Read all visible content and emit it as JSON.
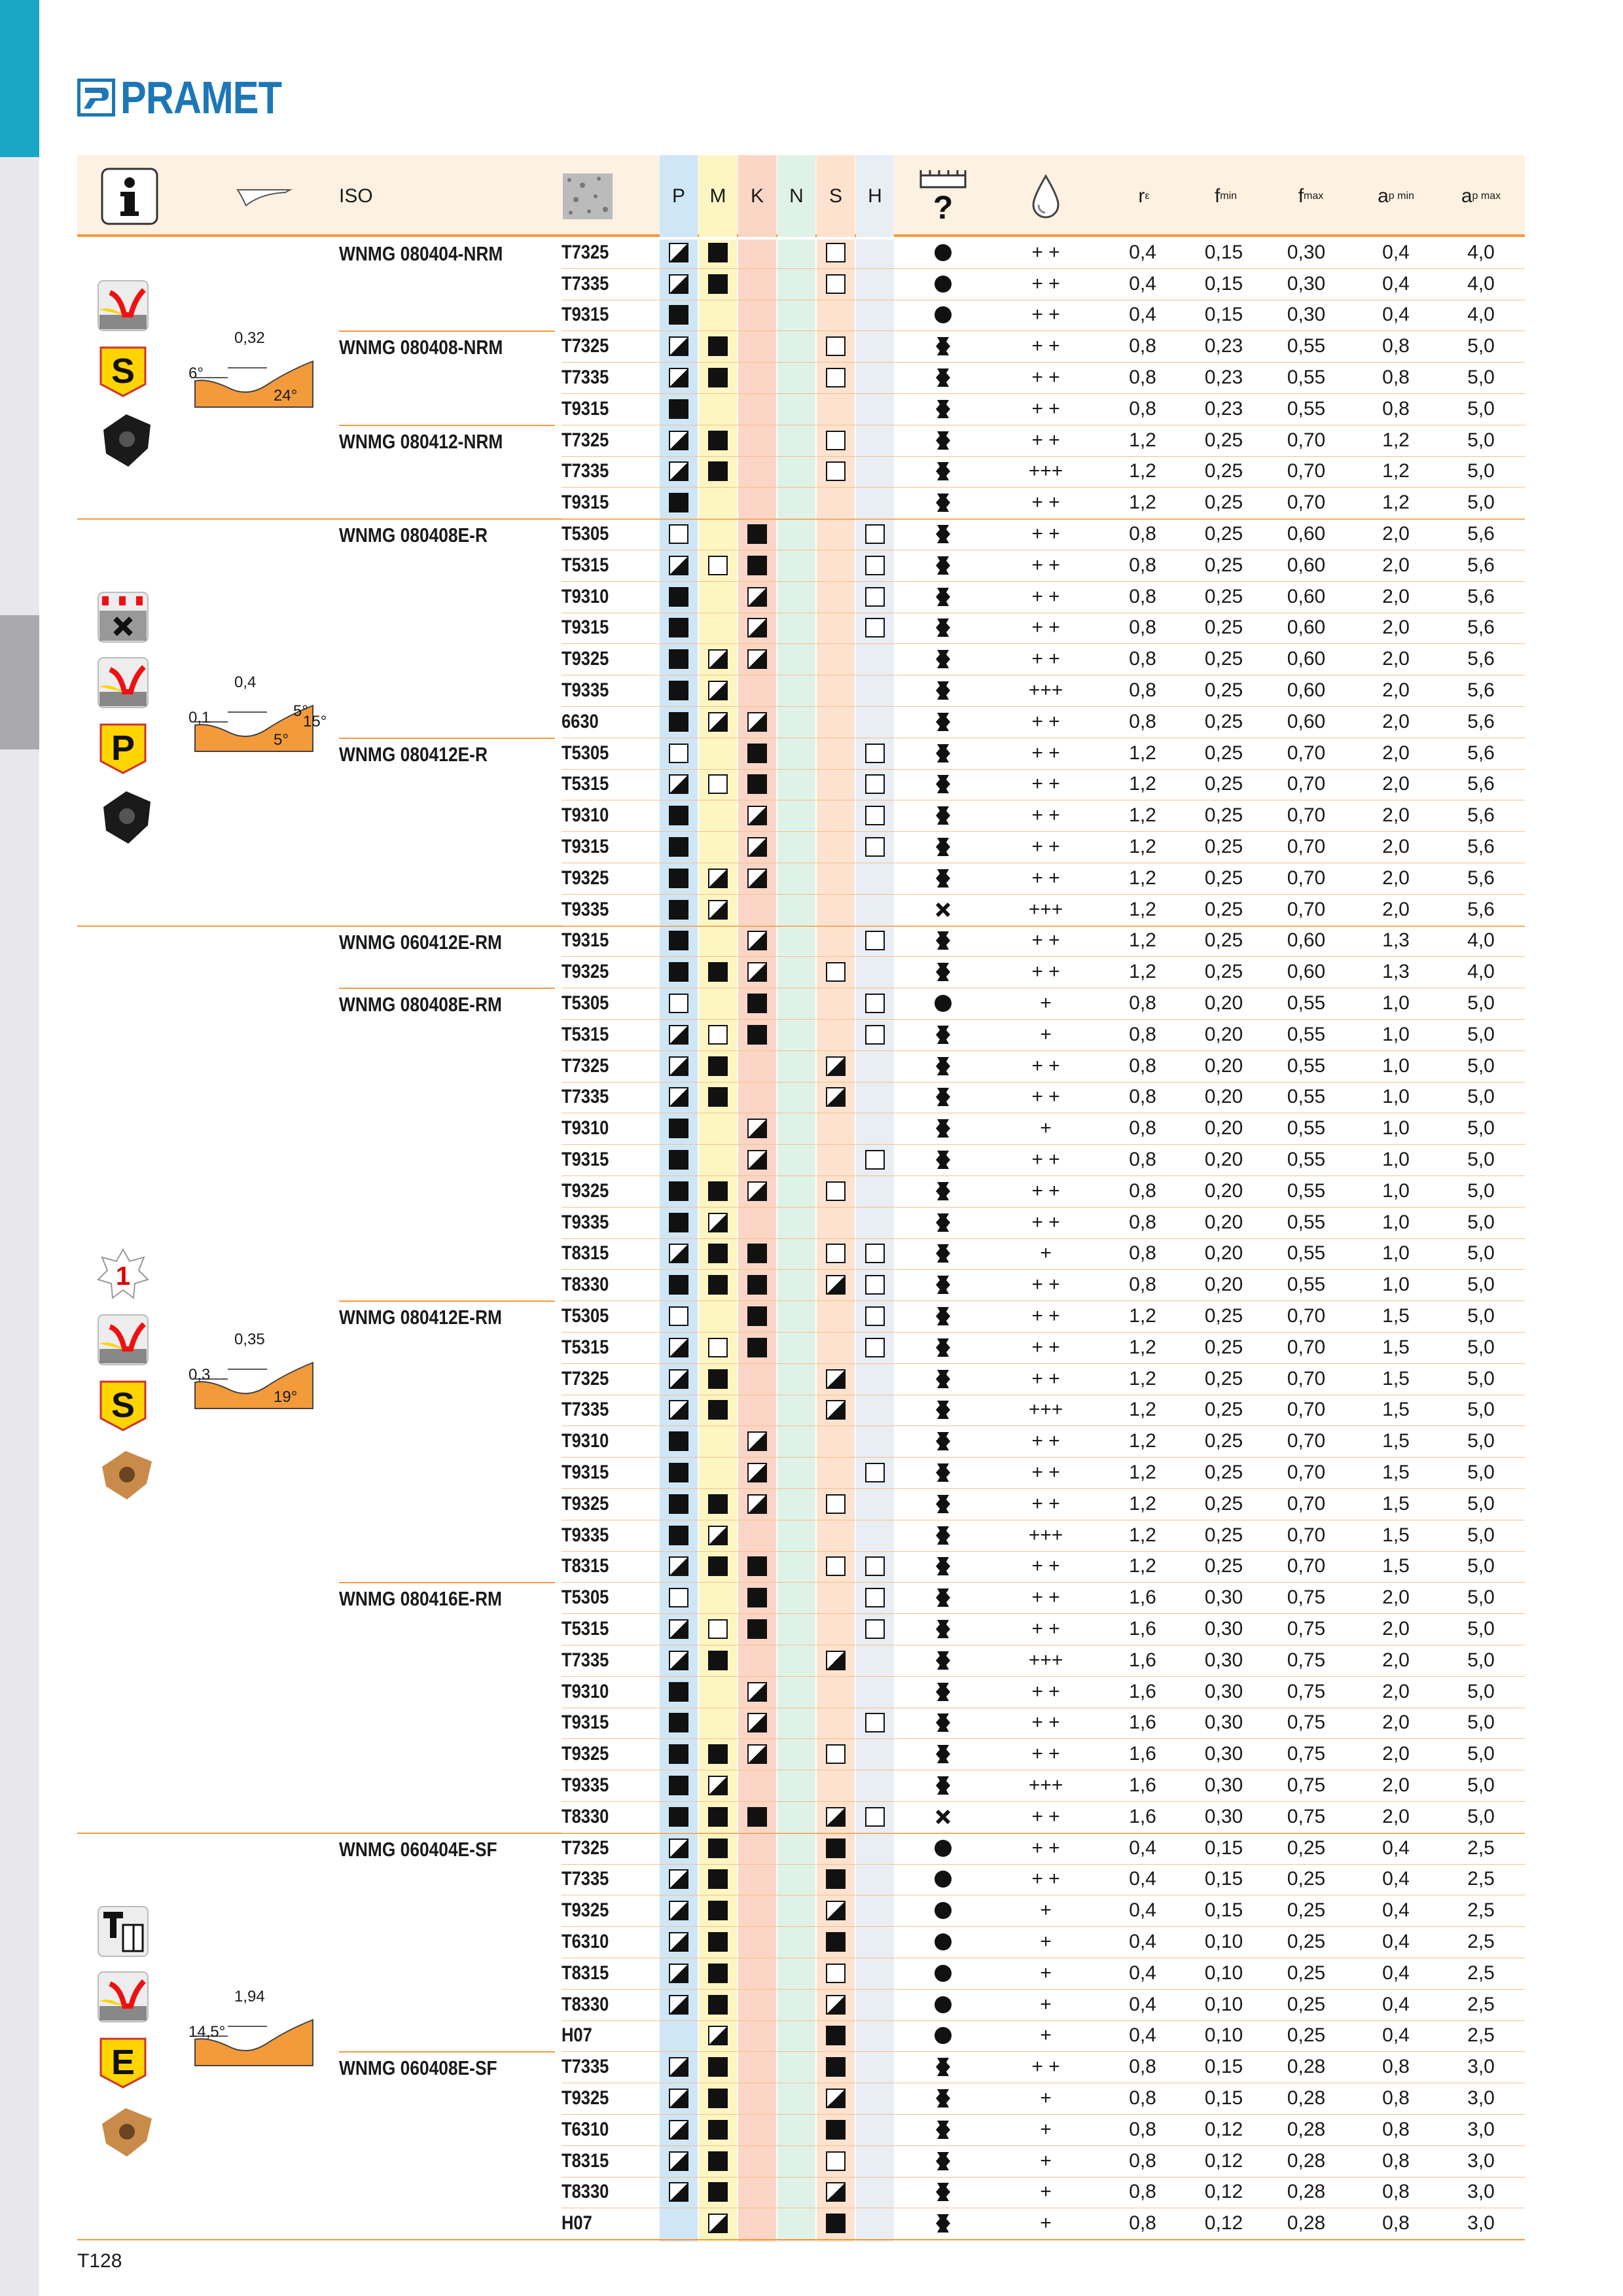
{
  "brand": "PRAMET",
  "page_label": "T128",
  "header": {
    "iso": "ISO",
    "P": "P",
    "M": "M",
    "K": "K",
    "N": "N",
    "S": "S",
    "H": "H",
    "re": "r",
    "re_sub": "ε",
    "fmin": "f",
    "fmin_sub": "min",
    "fmax": "f",
    "fmax_sub": "max",
    "apmin": "a",
    "apmin_sub": "p min",
    "apmax": "a",
    "apmax_sub": "p max"
  },
  "colors": {
    "P": "#cfe6f7",
    "M": "#fdf6c3",
    "K": "#fbd6c6",
    "N": "#dff2e8",
    "S": "#fde3cf",
    "H": "#e9edf4",
    "accent": "#f39a3b"
  },
  "groups": [
    {
      "iso": [
        [
          "WNMG 080404-NRM",
          0
        ],
        [
          "WNMG 080408-NRM",
          3
        ],
        [
          "WNMG 080412-NRM",
          6
        ]
      ],
      "start": 0,
      "count": 9,
      "icons": [
        "yellow-chip-icon",
        "s-icon",
        "black-insert-icon"
      ],
      "angles": [
        "0,32",
        "6°",
        "24°"
      ]
    },
    {
      "iso": [
        [
          "WNMG 080408E-R",
          0
        ],
        [
          "WNMG 080412E-R",
          7
        ]
      ],
      "start": 9,
      "count": 13,
      "icons": [
        "interrupted-cut-icon",
        "yellow-chip-icon",
        "p-icon",
        "black-insert-icon"
      ],
      "angles": [
        "0,4",
        "0,1",
        "5°",
        "5°",
        "15°"
      ]
    },
    {
      "iso": [
        [
          "WNMG 060412E-RM",
          0
        ],
        [
          "WNMG 080408E-RM",
          2
        ],
        [
          "WNMG 080412E-RM",
          12
        ],
        [
          "WNMG 080416E-RM",
          21
        ]
      ],
      "start": 22,
      "count": 29,
      "icons": [
        "star-1-icon",
        "yellow-chip-icon",
        "s-icon",
        "gold-insert-icon"
      ],
      "angles": [
        "0,35",
        "0,3",
        "19°"
      ]
    },
    {
      "iso": [
        [
          "WNMG 060404E-SF",
          0
        ],
        [
          "WNMG 060408E-SF",
          7
        ]
      ],
      "start": 51,
      "count": 13,
      "icons": [
        "tool-icon",
        "yellow-chip-icon",
        "e-icon",
        "gold-insert-icon"
      ],
      "angles": [
        "1,94",
        "14,5°"
      ]
    }
  ],
  "rows": [
    [
      "T7325",
      "h",
      "f",
      "",
      "",
      "e",
      "",
      "dot",
      "++",
      "0,4",
      "0,15",
      "0,30",
      "0,4",
      "4,0"
    ],
    [
      "T7335",
      "h",
      "f",
      "",
      "",
      "e",
      "",
      "dot",
      "++",
      "0,4",
      "0,15",
      "0,30",
      "0,4",
      "4,0"
    ],
    [
      "T9315",
      "f",
      "",
      "",
      "",
      "",
      "",
      "dot",
      "++",
      "0,4",
      "0,15",
      "0,30",
      "0,4",
      "4,0"
    ],
    [
      "T7325",
      "h",
      "f",
      "",
      "",
      "e",
      "",
      "wave",
      "++",
      "0,8",
      "0,23",
      "0,55",
      "0,8",
      "5,0"
    ],
    [
      "T7335",
      "h",
      "f",
      "",
      "",
      "e",
      "",
      "wave",
      "++",
      "0,8",
      "0,23",
      "0,55",
      "0,8",
      "5,0"
    ],
    [
      "T9315",
      "f",
      "",
      "",
      "",
      "",
      "",
      "wave",
      "++",
      "0,8",
      "0,23",
      "0,55",
      "0,8",
      "5,0"
    ],
    [
      "T7325",
      "h",
      "f",
      "",
      "",
      "e",
      "",
      "wave",
      "++",
      "1,2",
      "0,25",
      "0,70",
      "1,2",
      "5,0"
    ],
    [
      "T7335",
      "h",
      "f",
      "",
      "",
      "e",
      "",
      "wave",
      "+++",
      "1,2",
      "0,25",
      "0,70",
      "1,2",
      "5,0"
    ],
    [
      "T9315",
      "f",
      "",
      "",
      "",
      "",
      "",
      "wave",
      "++",
      "1,2",
      "0,25",
      "0,70",
      "1,2",
      "5,0"
    ],
    [
      "T5305",
      "e",
      "",
      "f",
      "",
      "",
      "e",
      "wave",
      "++",
      "0,8",
      "0,25",
      "0,60",
      "2,0",
      "5,6"
    ],
    [
      "T5315",
      "h",
      "e",
      "f",
      "",
      "",
      "e",
      "wave",
      "++",
      "0,8",
      "0,25",
      "0,60",
      "2,0",
      "5,6"
    ],
    [
      "T9310",
      "f",
      "",
      "h",
      "",
      "",
      "e",
      "wave",
      "++",
      "0,8",
      "0,25",
      "0,60",
      "2,0",
      "5,6"
    ],
    [
      "T9315",
      "f",
      "",
      "h",
      "",
      "",
      "e",
      "wave",
      "++",
      "0,8",
      "0,25",
      "0,60",
      "2,0",
      "5,6"
    ],
    [
      "T9325",
      "f",
      "h",
      "h",
      "",
      "",
      "",
      "wave",
      "++",
      "0,8",
      "0,25",
      "0,60",
      "2,0",
      "5,6"
    ],
    [
      "T9335",
      "f",
      "h",
      "",
      "",
      "",
      "",
      "wave",
      "+++",
      "0,8",
      "0,25",
      "0,60",
      "2,0",
      "5,6"
    ],
    [
      "6630",
      "f",
      "h",
      "h",
      "",
      "",
      "",
      "wave",
      "++",
      "0,8",
      "0,25",
      "0,60",
      "2,0",
      "5,6"
    ],
    [
      "T5305",
      "e",
      "",
      "f",
      "",
      "",
      "e",
      "wave",
      "++",
      "1,2",
      "0,25",
      "0,70",
      "2,0",
      "5,6"
    ],
    [
      "T5315",
      "h",
      "e",
      "f",
      "",
      "",
      "e",
      "wave",
      "++",
      "1,2",
      "0,25",
      "0,70",
      "2,0",
      "5,6"
    ],
    [
      "T9310",
      "f",
      "",
      "h",
      "",
      "",
      "e",
      "wave",
      "++",
      "1,2",
      "0,25",
      "0,70",
      "2,0",
      "5,6"
    ],
    [
      "T9315",
      "f",
      "",
      "h",
      "",
      "",
      "e",
      "wave",
      "++",
      "1,2",
      "0,25",
      "0,70",
      "2,0",
      "5,6"
    ],
    [
      "T9325",
      "f",
      "h",
      "h",
      "",
      "",
      "",
      "wave",
      "++",
      "1,2",
      "0,25",
      "0,70",
      "2,0",
      "5,6"
    ],
    [
      "T9335",
      "f",
      "h",
      "",
      "",
      "",
      "",
      "cross",
      "+++",
      "1,2",
      "0,25",
      "0,70",
      "2,0",
      "5,6"
    ],
    [
      "T9315",
      "f",
      "",
      "h",
      "",
      "",
      "e",
      "wave",
      "++",
      "1,2",
      "0,25",
      "0,60",
      "1,3",
      "4,0"
    ],
    [
      "T9325",
      "f",
      "f",
      "h",
      "",
      "e",
      "",
      "wave",
      "++",
      "1,2",
      "0,25",
      "0,60",
      "1,3",
      "4,0"
    ],
    [
      "T5305",
      "e",
      "",
      "f",
      "",
      "",
      "e",
      "dot",
      "+",
      "0,8",
      "0,20",
      "0,55",
      "1,0",
      "5,0"
    ],
    [
      "T5315",
      "h",
      "e",
      "f",
      "",
      "",
      "e",
      "wave",
      "+",
      "0,8",
      "0,20",
      "0,55",
      "1,0",
      "5,0"
    ],
    [
      "T7325",
      "h",
      "f",
      "",
      "",
      "h",
      "",
      "wave",
      "++",
      "0,8",
      "0,20",
      "0,55",
      "1,0",
      "5,0"
    ],
    [
      "T7335",
      "h",
      "f",
      "",
      "",
      "h",
      "",
      "wave",
      "++",
      "0,8",
      "0,20",
      "0,55",
      "1,0",
      "5,0"
    ],
    [
      "T9310",
      "f",
      "",
      "h",
      "",
      "",
      "",
      "wave",
      "+",
      "0,8",
      "0,20",
      "0,55",
      "1,0",
      "5,0"
    ],
    [
      "T9315",
      "f",
      "",
      "h",
      "",
      "",
      "e",
      "wave",
      "++",
      "0,8",
      "0,20",
      "0,55",
      "1,0",
      "5,0"
    ],
    [
      "T9325",
      "f",
      "f",
      "h",
      "",
      "e",
      "",
      "wave",
      "++",
      "0,8",
      "0,20",
      "0,55",
      "1,0",
      "5,0"
    ],
    [
      "T9335",
      "f",
      "h",
      "",
      "",
      "",
      "",
      "wave",
      "++",
      "0,8",
      "0,20",
      "0,55",
      "1,0",
      "5,0"
    ],
    [
      "T8315",
      "h",
      "f",
      "f",
      "",
      "e",
      "e",
      "wave",
      "+",
      "0,8",
      "0,20",
      "0,55",
      "1,0",
      "5,0"
    ],
    [
      "T8330",
      "f",
      "f",
      "f",
      "",
      "h",
      "e",
      "wave",
      "++",
      "0,8",
      "0,20",
      "0,55",
      "1,0",
      "5,0"
    ],
    [
      "T5305",
      "e",
      "",
      "f",
      "",
      "",
      "e",
      "wave",
      "++",
      "1,2",
      "0,25",
      "0,70",
      "1,5",
      "5,0"
    ],
    [
      "T5315",
      "h",
      "e",
      "f",
      "",
      "",
      "e",
      "wave",
      "++",
      "1,2",
      "0,25",
      "0,70",
      "1,5",
      "5,0"
    ],
    [
      "T7325",
      "h",
      "f",
      "",
      "",
      "h",
      "",
      "wave",
      "++",
      "1,2",
      "0,25",
      "0,70",
      "1,5",
      "5,0"
    ],
    [
      "T7335",
      "h",
      "f",
      "",
      "",
      "h",
      "",
      "wave",
      "+++",
      "1,2",
      "0,25",
      "0,70",
      "1,5",
      "5,0"
    ],
    [
      "T9310",
      "f",
      "",
      "h",
      "",
      "",
      "",
      "wave",
      "++",
      "1,2",
      "0,25",
      "0,70",
      "1,5",
      "5,0"
    ],
    [
      "T9315",
      "f",
      "",
      "h",
      "",
      "",
      "e",
      "wave",
      "++",
      "1,2",
      "0,25",
      "0,70",
      "1,5",
      "5,0"
    ],
    [
      "T9325",
      "f",
      "f",
      "h",
      "",
      "e",
      "",
      "wave",
      "++",
      "1,2",
      "0,25",
      "0,70",
      "1,5",
      "5,0"
    ],
    [
      "T9335",
      "f",
      "h",
      "",
      "",
      "",
      "",
      "wave",
      "+++",
      "1,2",
      "0,25",
      "0,70",
      "1,5",
      "5,0"
    ],
    [
      "T8315",
      "h",
      "f",
      "f",
      "",
      "e",
      "e",
      "wave",
      "++",
      "1,2",
      "0,25",
      "0,70",
      "1,5",
      "5,0"
    ],
    [
      "T5305",
      "e",
      "",
      "f",
      "",
      "",
      "e",
      "wave",
      "++",
      "1,6",
      "0,30",
      "0,75",
      "2,0",
      "5,0"
    ],
    [
      "T5315",
      "h",
      "e",
      "f",
      "",
      "",
      "e",
      "wave",
      "++",
      "1,6",
      "0,30",
      "0,75",
      "2,0",
      "5,0"
    ],
    [
      "T7335",
      "h",
      "f",
      "",
      "",
      "h",
      "",
      "wave",
      "+++",
      "1,6",
      "0,30",
      "0,75",
      "2,0",
      "5,0"
    ],
    [
      "T9310",
      "f",
      "",
      "h",
      "",
      "",
      "",
      "wave",
      "++",
      "1,6",
      "0,30",
      "0,75",
      "2,0",
      "5,0"
    ],
    [
      "T9315",
      "f",
      "",
      "h",
      "",
      "",
      "e",
      "wave",
      "++",
      "1,6",
      "0,30",
      "0,75",
      "2,0",
      "5,0"
    ],
    [
      "T9325",
      "f",
      "f",
      "h",
      "",
      "e",
      "",
      "wave",
      "++",
      "1,6",
      "0,30",
      "0,75",
      "2,0",
      "5,0"
    ],
    [
      "T9335",
      "f",
      "h",
      "",
      "",
      "",
      "",
      "wave",
      "+++",
      "1,6",
      "0,30",
      "0,75",
      "2,0",
      "5,0"
    ],
    [
      "T8330",
      "f",
      "f",
      "f",
      "",
      "h",
      "e",
      "cross",
      "++",
      "1,6",
      "0,30",
      "0,75",
      "2,0",
      "5,0"
    ],
    [
      "T7325",
      "h",
      "f",
      "",
      "",
      "f",
      "",
      "dot",
      "++",
      "0,4",
      "0,15",
      "0,25",
      "0,4",
      "2,5"
    ],
    [
      "T7335",
      "h",
      "f",
      "",
      "",
      "f",
      "",
      "dot",
      "++",
      "0,4",
      "0,15",
      "0,25",
      "0,4",
      "2,5"
    ],
    [
      "T9325",
      "h",
      "f",
      "",
      "",
      "h",
      "",
      "dot",
      "+",
      "0,4",
      "0,15",
      "0,25",
      "0,4",
      "2,5"
    ],
    [
      "T6310",
      "h",
      "f",
      "",
      "",
      "f",
      "",
      "dot",
      "+",
      "0,4",
      "0,10",
      "0,25",
      "0,4",
      "2,5"
    ],
    [
      "T8315",
      "h",
      "f",
      "",
      "",
      "e",
      "",
      "dot",
      "+",
      "0,4",
      "0,10",
      "0,25",
      "0,4",
      "2,5"
    ],
    [
      "T8330",
      "h",
      "f",
      "",
      "",
      "h",
      "",
      "dot",
      "+",
      "0,4",
      "0,10",
      "0,25",
      "0,4",
      "2,5"
    ],
    [
      "H07",
      "",
      "h",
      "",
      "",
      "f",
      "",
      "dot",
      "+",
      "0,4",
      "0,10",
      "0,25",
      "0,4",
      "2,5"
    ],
    [
      "T7335",
      "h",
      "f",
      "",
      "",
      "f",
      "",
      "wave",
      "++",
      "0,8",
      "0,15",
      "0,28",
      "0,8",
      "3,0"
    ],
    [
      "T9325",
      "h",
      "f",
      "",
      "",
      "h",
      "",
      "wave",
      "+",
      "0,8",
      "0,15",
      "0,28",
      "0,8",
      "3,0"
    ],
    [
      "T6310",
      "h",
      "f",
      "",
      "",
      "f",
      "",
      "wave",
      "+",
      "0,8",
      "0,12",
      "0,28",
      "0,8",
      "3,0"
    ],
    [
      "T8315",
      "h",
      "f",
      "",
      "",
      "e",
      "",
      "wave",
      "+",
      "0,8",
      "0,12",
      "0,28",
      "0,8",
      "3,0"
    ],
    [
      "T8330",
      "h",
      "f",
      "",
      "",
      "h",
      "",
      "wave",
      "+",
      "0,8",
      "0,12",
      "0,28",
      "0,8",
      "3,0"
    ],
    [
      "H07",
      "",
      "h",
      "",
      "",
      "f",
      "",
      "wave",
      "+",
      "0,8",
      "0,12",
      "0,28",
      "0,8",
      "3,0"
    ]
  ]
}
